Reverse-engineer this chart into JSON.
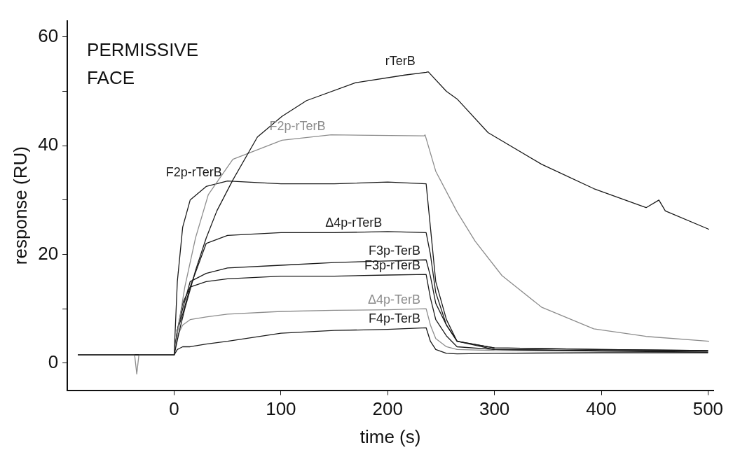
{
  "chart_data": {
    "type": "line",
    "xlabel": "time (s)",
    "ylabel": "response (RU)",
    "annotations": [
      "PERMISSIVE FACE"
    ],
    "xlim": [
      -100,
      505
    ],
    "ylim": [
      -5,
      63
    ],
    "xticks": [
      0,
      100,
      200,
      300,
      400,
      500
    ],
    "yticks": [
      0,
      {
        "value": 10,
        "label": null
      },
      20,
      {
        "value": 30,
        "label": null
      },
      40,
      {
        "value": 50,
        "label": null
      },
      60
    ],
    "grid": false,
    "legend": false,
    "marker": "none",
    "line_style": "solid",
    "x": [
      -90,
      -40,
      0,
      3,
      8,
      15,
      30,
      50,
      100,
      150,
      200,
      236,
      240,
      245,
      255,
      265,
      300,
      400,
      500
    ],
    "series": [
      {
        "name": "rTerB",
        "color": "#1a1a1a",
        "x": [
          -90,
          -40,
          0,
          5,
          10,
          20,
          30,
          40,
          55,
          78,
          101,
          124,
          170,
          216,
          236,
          238,
          255,
          265,
          294,
          344,
          393,
          442,
          454,
          460,
          501
        ],
        "values": [
          1.5,
          1.5,
          1.5,
          6,
          10,
          17,
          23,
          28,
          33.7,
          41.6,
          45.4,
          48.3,
          51.6,
          53,
          53.5,
          53.6,
          50,
          48.6,
          42.4,
          36.6,
          32.1,
          28.6,
          30,
          28,
          24.6
        ]
      },
      {
        "name": "F2p-rTerB",
        "color": "#8c8c8c",
        "x": [
          -90,
          -37,
          -35,
          -33,
          0,
          5,
          10,
          20,
          32,
          55,
          101,
          147,
          234,
          235,
          245,
          265,
          282,
          307,
          344,
          393,
          442,
          501
        ],
        "values": [
          1.5,
          1.5,
          -2,
          1.5,
          1.5,
          8,
          14,
          23,
          31,
          37.5,
          41,
          42,
          41.8,
          42,
          35.3,
          27.8,
          22.4,
          16.1,
          10.3,
          6.3,
          4.9,
          4
        ]
      },
      {
        "name": "F2p-rTerB",
        "color": "#1a1a1a",
        "values": [
          1.5,
          1.5,
          1.5,
          15,
          25,
          30,
          32.5,
          33.5,
          33,
          33,
          33.3,
          33,
          25,
          15,
          8,
          4,
          2.5,
          2.2,
          2
        ]
      },
      {
        "name": "Δ4p-rTerB",
        "color": "#1a1a1a",
        "values": [
          1.5,
          1.5,
          1.5,
          6,
          9,
          14,
          22,
          23.5,
          24,
          24,
          24.2,
          24,
          20,
          13,
          7,
          4,
          2.8,
          2.5,
          2.3
        ]
      },
      {
        "name": "F3p-TerB",
        "color": "#1a1a1a",
        "values": [
          1.5,
          1.5,
          1.5,
          6,
          10,
          15,
          16.5,
          17.5,
          18,
          18.5,
          18.8,
          19,
          16,
          11,
          7,
          4,
          2.8,
          2.5,
          2.3
        ]
      },
      {
        "name": "F3p-rTerB",
        "color": "#1a1a1a",
        "values": [
          1.5,
          1.5,
          1.5,
          6,
          11,
          14,
          15,
          15.5,
          16,
          16,
          16.2,
          16.3,
          12,
          8,
          5,
          3,
          2.5,
          2.3,
          2.2
        ]
      },
      {
        "name": "Δ4p-TerB",
        "color": "#8c8c8c",
        "values": [
          1.5,
          1.5,
          1.5,
          5,
          7,
          8,
          8.5,
          9,
          9.5,
          9.7,
          9.8,
          10,
          7,
          4.5,
          3,
          2.5,
          2.3,
          2.2,
          2.2
        ]
      },
      {
        "name": "F4p-TerB",
        "color": "#1a1a1a",
        "values": [
          1.5,
          1.5,
          1.5,
          2.5,
          3,
          3,
          3.5,
          4,
          5.5,
          6,
          6.2,
          6.5,
          4,
          2.5,
          1.8,
          1.7,
          1.8,
          1.9,
          1.9
        ]
      }
    ]
  }
}
